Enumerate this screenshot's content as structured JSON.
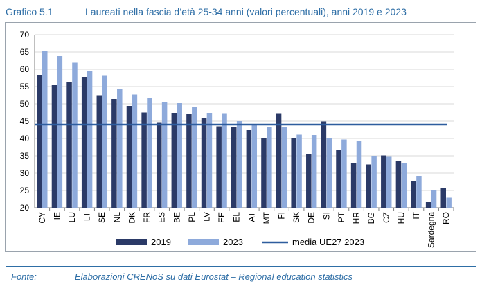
{
  "header": {
    "number": "Grafico 5.1",
    "title": "Laureati nella fascia d’età 25-34 anni (valori percentuali), anni 2019 e 2023"
  },
  "footer": {
    "source_label": "Fonte:",
    "source_text": "Elaborazioni CRENoS su dati Eurostat – Regional education statistics"
  },
  "colors": {
    "s2019": "#2b3a67",
    "s2023": "#8eaadb",
    "avg": "#2e5d9e",
    "grid": "#d9d9d9"
  },
  "chart_data": {
    "type": "bar",
    "categories": [
      "CY",
      "IE",
      "LU",
      "LT",
      "SE",
      "NL",
      "DK",
      "FR",
      "ES",
      "BE",
      "PL",
      "LV",
      "EE",
      "EL",
      "AT",
      "MT",
      "FI",
      "SK",
      "DE",
      "SI",
      "PT",
      "HR",
      "BG",
      "CZ",
      "HU",
      "IT",
      "Sardegna",
      "RO"
    ],
    "series": [
      {
        "name": "2019",
        "values": [
          58.2,
          55.4,
          56.2,
          57.8,
          52.5,
          51.4,
          49.4,
          47.5,
          44.7,
          47.4,
          47.0,
          45.8,
          43.5,
          43.2,
          42.4,
          40.0,
          47.3,
          40.1,
          35.5,
          44.9,
          36.8,
          32.8,
          32.5,
          35.1,
          33.4,
          27.8,
          21.8,
          25.8
        ]
      },
      {
        "name": "2023",
        "values": [
          65.3,
          63.8,
          61.9,
          59.5,
          58.1,
          54.3,
          52.7,
          51.6,
          50.6,
          50.2,
          49.2,
          47.4,
          47.3,
          45.0,
          44.0,
          43.4,
          43.2,
          41.1,
          41.0,
          40.0,
          39.7,
          39.3,
          35.0,
          34.9,
          32.9,
          29.2,
          25.0,
          22.9
        ]
      }
    ],
    "reference_line": {
      "name": "media UE27 2023",
      "value": 44.0
    },
    "ylim": [
      20,
      70
    ],
    "yticks": [
      20,
      25,
      30,
      35,
      40,
      45,
      50,
      55,
      60,
      65,
      70
    ],
    "grid": true,
    "legend_position": "bottom"
  }
}
